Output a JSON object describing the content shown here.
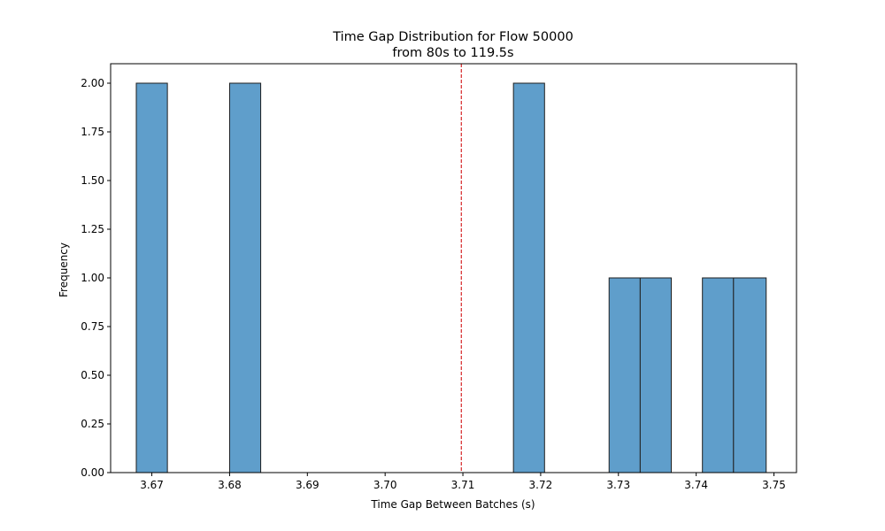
{
  "chart_data": {
    "type": "bar",
    "title": "Time Gap Distribution for Flow 50000",
    "subtitle": "from 80s to 119.5s",
    "xlabel": "Time Gap Between Batches (s)",
    "ylabel": "Frequency",
    "xlim": [
      3.6647,
      3.7529
    ],
    "ylim": [
      0,
      2.1
    ],
    "xticks": [
      3.67,
      3.68,
      3.69,
      3.7,
      3.71,
      3.72,
      3.73,
      3.74,
      3.75
    ],
    "xtick_labels": [
      "3.67",
      "3.68",
      "3.69",
      "3.70",
      "3.71",
      "3.72",
      "3.73",
      "3.74",
      "3.75"
    ],
    "yticks": [
      0,
      0.25,
      0.5,
      0.75,
      1.0,
      1.25,
      1.5,
      1.75,
      2.0
    ],
    "ytick_labels": [
      "0.00",
      "0.25",
      "0.50",
      "0.75",
      "1.00",
      "1.25",
      "1.50",
      "1.75",
      "2.00"
    ],
    "bins": [
      {
        "x0": 3.668,
        "x1": 3.672,
        "value": 2
      },
      {
        "x0": 3.68,
        "x1": 3.684,
        "value": 2
      },
      {
        "x0": 3.7165,
        "x1": 3.7205,
        "value": 2
      },
      {
        "x0": 3.7288,
        "x1": 3.7328,
        "value": 1
      },
      {
        "x0": 3.7328,
        "x1": 3.7368,
        "value": 1
      },
      {
        "x0": 3.7408,
        "x1": 3.7448,
        "value": 1
      },
      {
        "x0": 3.7448,
        "x1": 3.749,
        "value": 1
      }
    ],
    "reference_line": {
      "x": 3.7098,
      "color": "#d62728",
      "style": "dashed"
    },
    "bar_color": "#5f9ecb",
    "bar_edge_color": "#1f1f1f",
    "grid": false,
    "legend": "none"
  }
}
